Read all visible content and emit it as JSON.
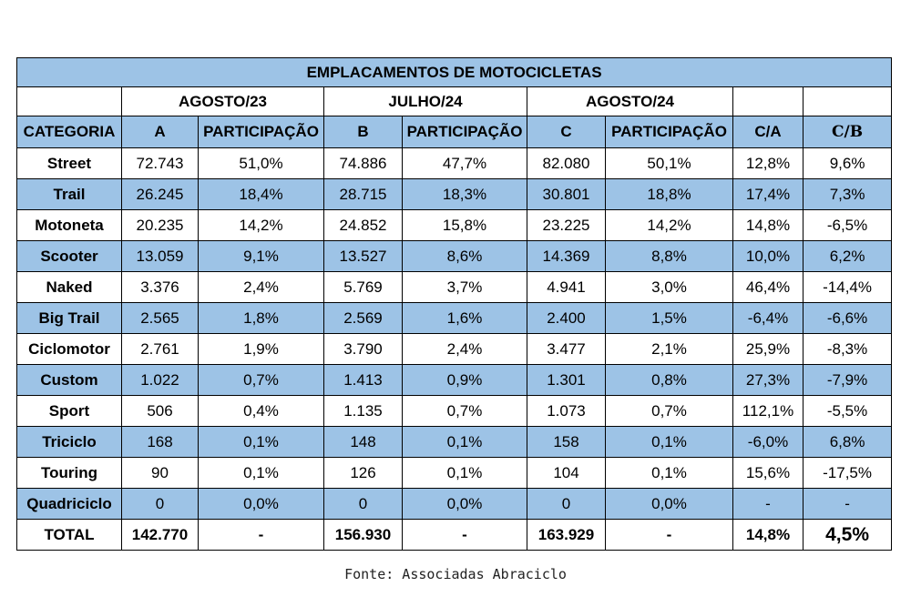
{
  "chart_data": {
    "type": "table",
    "title": "EMPLACAMENTOS DE MOTOCICLETAS",
    "period_headers": [
      "AGOSTO/23",
      "JULHO/24",
      "AGOSTO/24"
    ],
    "columns": [
      "CATEGORIA",
      "A",
      "PARTICIPAÇÃO",
      "B",
      "PARTICIPAÇÃO",
      "C",
      "PARTICIPAÇÃO",
      "C/A",
      "C/B"
    ],
    "rows": [
      [
        "Street",
        "72.743",
        "51,0%",
        "74.886",
        "47,7%",
        "82.080",
        "50,1%",
        "12,8%",
        "9,6%"
      ],
      [
        "Trail",
        "26.245",
        "18,4%",
        "28.715",
        "18,3%",
        "30.801",
        "18,8%",
        "17,4%",
        "7,3%"
      ],
      [
        "Motoneta",
        "20.235",
        "14,2%",
        "24.852",
        "15,8%",
        "23.225",
        "14,2%",
        "14,8%",
        "-6,5%"
      ],
      [
        "Scooter",
        "13.059",
        "9,1%",
        "13.527",
        "8,6%",
        "14.369",
        "8,8%",
        "10,0%",
        "6,2%"
      ],
      [
        "Naked",
        "3.376",
        "2,4%",
        "5.769",
        "3,7%",
        "4.941",
        "3,0%",
        "46,4%",
        "-14,4%"
      ],
      [
        "Big Trail",
        "2.565",
        "1,8%",
        "2.569",
        "1,6%",
        "2.400",
        "1,5%",
        "-6,4%",
        "-6,6%"
      ],
      [
        "Ciclomotor",
        "2.761",
        "1,9%",
        "3.790",
        "2,4%",
        "3.477",
        "2,1%",
        "25,9%",
        "-8,3%"
      ],
      [
        "Custom",
        "1.022",
        "0,7%",
        "1.413",
        "0,9%",
        "1.301",
        "0,8%",
        "27,3%",
        "-7,9%"
      ],
      [
        "Sport",
        "506",
        "0,4%",
        "1.135",
        "0,7%",
        "1.073",
        "0,7%",
        "112,1%",
        "-5,5%"
      ],
      [
        "Triciclo",
        "168",
        "0,1%",
        "148",
        "0,1%",
        "158",
        "0,1%",
        "-6,0%",
        "6,8%"
      ],
      [
        "Touring",
        "90",
        "0,1%",
        "126",
        "0,1%",
        "104",
        "0,1%",
        "15,6%",
        "-17,5%"
      ],
      [
        "Quadriciclo",
        "0",
        "0,0%",
        "0",
        "0,0%",
        "0",
        "0,0%",
        "-",
        "-"
      ]
    ],
    "total": [
      "TOTAL",
      "142.770",
      "-",
      "156.930",
      "-",
      "163.929",
      "-",
      "14,8%",
      "4,5%"
    ],
    "source": "Fonte: Associadas Abraciclo",
    "colors": {
      "band": "#9dc3e6",
      "plain": "#ffffff",
      "border": "#000000"
    }
  }
}
